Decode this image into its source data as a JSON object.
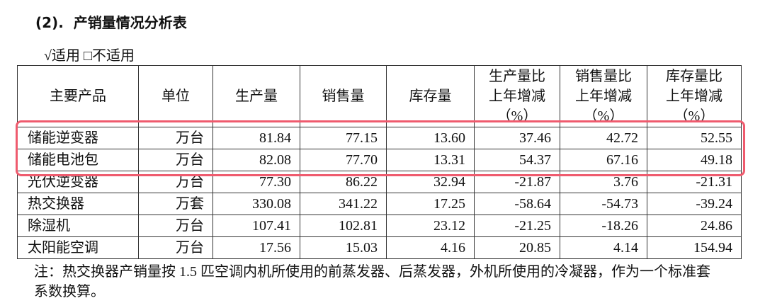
{
  "header": {
    "title": "(2).  产销量情况分析表",
    "applicability": "√适用 □不适用"
  },
  "table": {
    "columns": [
      "主要产品",
      "单位",
      "生产量",
      "销售量",
      "库存量",
      "生产量比\n上年增减\n（%）",
      "销售量比\n上年增减\n（%）",
      "库存量比\n上年增减\n（%）"
    ],
    "rows": [
      [
        "储能逆变器",
        "万台",
        "81.84",
        "77.15",
        "13.60",
        "37.46",
        "42.72",
        "52.55"
      ],
      [
        "储能电池包",
        "万台",
        "82.08",
        "77.70",
        "13.31",
        "54.37",
        "67.16",
        "49.18"
      ],
      [
        "光伏逆变器",
        "万台",
        "77.30",
        "86.22",
        "32.94",
        "-21.87",
        "3.76",
        "-21.31"
      ],
      [
        "热交换器",
        "万套",
        "330.08",
        "341.22",
        "17.25",
        "-58.64",
        "-54.73",
        "-39.24"
      ],
      [
        "除湿机",
        "万台",
        "107.41",
        "102.81",
        "23.12",
        "-21.25",
        "-18.26",
        "24.86"
      ],
      [
        "太阳能空调",
        "万台",
        "17.56",
        "15.03",
        "4.16",
        "20.85",
        "4.14",
        "154.94"
      ]
    ]
  },
  "note": "注：热交换器产销量按 1.5 匹空调内机所使用的前蒸发器、后蒸发器，外机所使用的冷凝器，作为一个标准套系数换算。"
}
